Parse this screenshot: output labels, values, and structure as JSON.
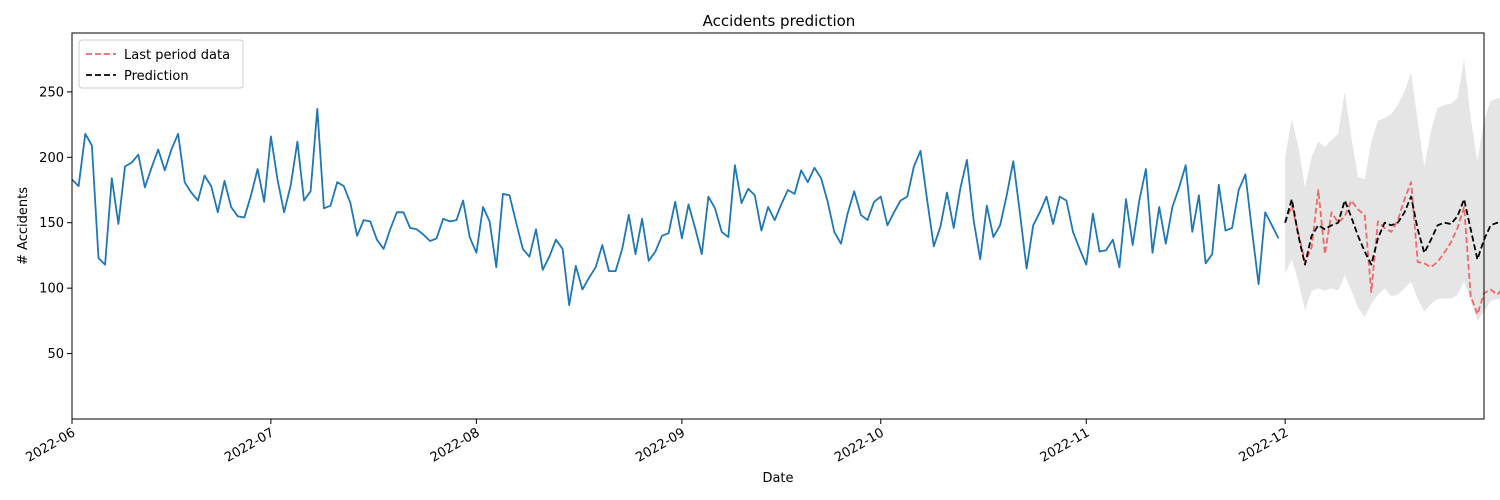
{
  "chart_data": {
    "type": "line",
    "title": "Accidents prediction",
    "xlabel": "Date",
    "ylabel": "# Accidents",
    "xlim": [
      "2022-06-01",
      "2022-12-31"
    ],
    "ylim": [
      0,
      295
    ],
    "x_tick_labels": [
      "2022-06",
      "2022-07",
      "2022-08",
      "2022-09",
      "2022-10",
      "2022-11",
      "2022-12"
    ],
    "x_tick_dates": [
      "2022-06-01",
      "2022-07-01",
      "2022-08-01",
      "2022-09-01",
      "2022-10-01",
      "2022-11-01",
      "2022-12-01"
    ],
    "y_ticks": [
      50,
      100,
      150,
      200,
      250
    ],
    "grid": false,
    "legend": {
      "placement": "top-left"
    },
    "colors": {
      "history": "#1f77b4",
      "last_period": "#f06868",
      "prediction": "#000000",
      "band": "#e5e5e5"
    },
    "series": [
      {
        "name": "",
        "style": "solid",
        "color": "#1f77b4",
        "start": "2022-06-01",
        "values": [
          183,
          178,
          218,
          209,
          123,
          118,
          184,
          149,
          193,
          196,
          202,
          177,
          192,
          206,
          190,
          206,
          218,
          181,
          173,
          167,
          186,
          178,
          158,
          182,
          162,
          155,
          154,
          171,
          191,
          166,
          216,
          183,
          158,
          179,
          212,
          167,
          174,
          237,
          161,
          163,
          181,
          178,
          165,
          140,
          152,
          151,
          137,
          130,
          145,
          158,
          158,
          146,
          145,
          141,
          136,
          138,
          153,
          151,
          152,
          167,
          139,
          127,
          162,
          151,
          116,
          172,
          171,
          150,
          130,
          124,
          145,
          114,
          124,
          137,
          130,
          87,
          117,
          99,
          108,
          116,
          133,
          113,
          113,
          130,
          156,
          126,
          153,
          121,
          128,
          140,
          142,
          166,
          138,
          164,
          146,
          126,
          170,
          161,
          143,
          139,
          194,
          165,
          176,
          171,
          144,
          162,
          152,
          164,
          175,
          172,
          190,
          181,
          192,
          184,
          166,
          143,
          134,
          157,
          174,
          156,
          152,
          166,
          170,
          148,
          158,
          167,
          170,
          193,
          205,
          167,
          132,
          147,
          173,
          146,
          176,
          198,
          152,
          122,
          163,
          139,
          148,
          171,
          197,
          157,
          115,
          148,
          158,
          170,
          149,
          170,
          167,
          143,
          130,
          118,
          157,
          128,
          129,
          137,
          116,
          168,
          133,
          167,
          191,
          127,
          162,
          134,
          162,
          177,
          194,
          143,
          171,
          119,
          126,
          179,
          144,
          146,
          175,
          187,
          144,
          103,
          158,
          148,
          138
        ]
      },
      {
        "name": "Last period data",
        "style": "dashed",
        "color": "#f06868",
        "start": "2022-12-01",
        "values": [
          150,
          163,
          142,
          120,
          131,
          175,
          126,
          158,
          150,
          155,
          167,
          160,
          156,
          97,
          151,
          146,
          143,
          152,
          168,
          181,
          120,
          119,
          116,
          120,
          127,
          135,
          146,
          162,
          94,
          80,
          96,
          99,
          95,
          101,
          113,
          117,
          97
        ]
      },
      {
        "name": "Prediction",
        "style": "dashed",
        "color": "#000000",
        "start": "2022-12-01",
        "values": [
          150,
          168,
          140,
          118,
          140,
          148,
          145,
          148,
          150,
          167,
          154,
          140,
          128,
          118,
          138,
          150,
          148,
          150,
          158,
          170,
          145,
          127,
          137,
          148,
          150,
          149,
          155,
          168,
          145,
          122,
          137,
          148,
          150,
          149,
          155,
          167,
          145
        ]
      },
      {
        "name": "",
        "type": "band",
        "color": "#e5e5e5",
        "start": "2022-12-01",
        "lower": [
          111,
          122,
          105,
          83,
          98,
          100,
          98,
          100,
          98,
          110,
          98,
          85,
          78,
          88,
          95,
          100,
          94,
          95,
          100,
          105,
          92,
          82,
          88,
          92,
          92,
          92,
          95,
          105,
          90,
          75,
          82,
          90,
          92,
          90,
          95,
          104,
          92
        ],
        "upper": [
          200,
          229,
          208,
          177,
          200,
          212,
          208,
          213,
          218,
          250,
          215,
          185,
          183,
          212,
          228,
          230,
          233,
          240,
          250,
          265,
          228,
          193,
          220,
          238,
          240,
          241,
          245,
          275,
          230,
          197,
          228,
          243,
          245,
          246,
          250,
          280,
          240
        ]
      }
    ]
  }
}
